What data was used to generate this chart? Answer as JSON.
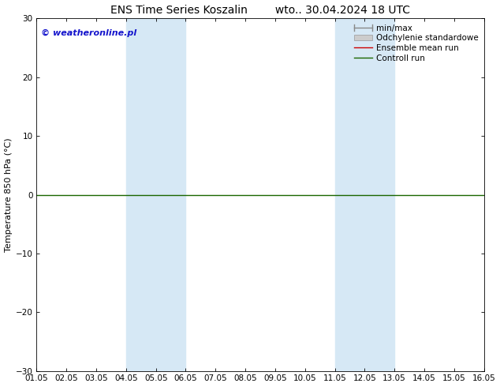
{
  "title_left": "ENS Time Series Koszalin",
  "title_right": "wto.. 30.04.2024 18 UTC",
  "ylabel": "Temperature 850 hPa (°C)",
  "ylim": [
    -30,
    30
  ],
  "yticks": [
    -30,
    -20,
    -10,
    0,
    10,
    20,
    30
  ],
  "xlim_start": 0,
  "xlim_end": 15,
  "xtick_labels": [
    "01.05",
    "02.05",
    "03.05",
    "04.05",
    "05.05",
    "06.05",
    "07.05",
    "08.05",
    "09.05",
    "10.05",
    "11.05",
    "12.05",
    "13.05",
    "14.05",
    "15.05",
    "16.05"
  ],
  "shaded_bands": [
    {
      "x_start": 3,
      "x_end": 5,
      "color": "#d6e8f5"
    },
    {
      "x_start": 10,
      "x_end": 12,
      "color": "#d6e8f5"
    }
  ],
  "copyright_text": "© weatheronline.pl",
  "copyright_color": "#1414cc",
  "bg_color": "#ffffff",
  "plot_bg_color": "#ffffff",
  "zero_line_color": "#1a6600",
  "legend_items": [
    {
      "label": "min/max",
      "color": "#888888",
      "lw": 1.0
    },
    {
      "label": "Odchylenie standardowe",
      "color": "#bbbbbb",
      "lw": 5
    },
    {
      "label": "Ensemble mean run",
      "color": "#cc0000",
      "lw": 1.0
    },
    {
      "label": "Controll run",
      "color": "#1a6600",
      "lw": 1.0
    }
  ],
  "title_fontsize": 10,
  "ylabel_fontsize": 8,
  "tick_fontsize": 7.5,
  "legend_fontsize": 7.5,
  "copyright_fontsize": 8
}
